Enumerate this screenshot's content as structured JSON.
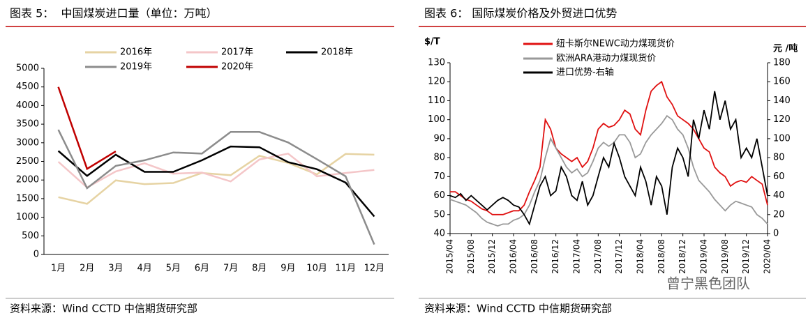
{
  "chart_data": [
    {
      "type": "line",
      "title": "图表 5：  中国煤炭进口量（单位：万吨）",
      "source": "资料来源：Wind CCTD 中信期货研究部",
      "categories": [
        "1月",
        "2月",
        "3月",
        "4月",
        "5月",
        "6月",
        "7月",
        "8月",
        "9月",
        "10月",
        "11月",
        "12月"
      ],
      "ylim": [
        0,
        5000
      ],
      "yticks": [
        0,
        500,
        1000,
        1500,
        2000,
        2500,
        3000,
        3500,
        4000,
        4500,
        5000
      ],
      "grid": false,
      "series": [
        {
          "name": "2016年",
          "color": "#e6d3a3",
          "values": [
            1540,
            1360,
            1990,
            1890,
            1920,
            2190,
            2130,
            2650,
            2460,
            2150,
            2700,
            2680
          ]
        },
        {
          "name": "2017年",
          "color": "#f4c6c8",
          "values": [
            2490,
            1800,
            2230,
            2450,
            2170,
            2200,
            1960,
            2550,
            2710,
            2100,
            2190,
            2270
          ]
        },
        {
          "name": "2018年",
          "color": "#000000",
          "values": [
            2780,
            2110,
            2680,
            2220,
            2220,
            2530,
            2900,
            2880,
            2480,
            2290,
            1930,
            1020
          ]
        },
        {
          "name": "2019年",
          "color": "#8c8c8c",
          "values": [
            3350,
            1780,
            2380,
            2530,
            2740,
            2710,
            3290,
            3290,
            3010,
            2560,
            2100,
            270
          ]
        },
        {
          "name": "2020年",
          "color": "#c00000",
          "values": [
            4500,
            2300,
            2770,
            null,
            null,
            null,
            null,
            null,
            null,
            null,
            null,
            null
          ]
        }
      ]
    },
    {
      "type": "line",
      "title": "图表 6：  国际煤炭价格及外贸进口优势",
      "source": "资料来源：Wind CCTD 中信期货研究部",
      "ylabel": "$/T",
      "y2label": "元 /吨",
      "x": [
        "2015/04",
        "2015/05",
        "2015/06",
        "2015/07",
        "2015/08",
        "2015/09",
        "2015/10",
        "2015/11",
        "2015/12",
        "2016/01",
        "2016/02",
        "2016/03",
        "2016/04",
        "2016/05",
        "2016/06",
        "2016/07",
        "2016/08",
        "2016/09",
        "2016/10",
        "2016/11",
        "2016/12",
        "2017/01",
        "2017/02",
        "2017/03",
        "2017/04",
        "2017/05",
        "2017/06",
        "2017/07",
        "2017/08",
        "2017/09",
        "2017/10",
        "2017/11",
        "2017/12",
        "2018/01",
        "2018/02",
        "2018/03",
        "2018/04",
        "2018/05",
        "2018/06",
        "2018/07",
        "2018/08",
        "2018/09",
        "2018/10",
        "2018/11",
        "2018/12",
        "2019/01",
        "2019/02",
        "2019/03",
        "2019/04",
        "2019/05",
        "2019/06",
        "2019/07",
        "2019/08",
        "2019/09",
        "2019/10",
        "2019/11",
        "2019/12",
        "2020/01",
        "2020/02",
        "2020/03",
        "2020/04"
      ],
      "xticks": [
        "2015/04",
        "2015/08",
        "2015/12",
        "2016/04",
        "2016/08",
        "2016/12",
        "2017/04",
        "2017/08",
        "2017/12",
        "2018/04",
        "2018/08",
        "2018/12",
        "2019/04",
        "2019/08",
        "2019/12",
        "2020/04"
      ],
      "ylim": [
        40,
        130
      ],
      "yticks": [
        40,
        50,
        60,
        70,
        80,
        90,
        100,
        110,
        120,
        130
      ],
      "y2lim": [
        0,
        180
      ],
      "y2ticks": [
        0,
        20,
        40,
        60,
        80,
        100,
        120,
        140,
        160,
        180
      ],
      "grid": false,
      "series": [
        {
          "name": "纽卡斯尔NEWC动力煤现货价",
          "color": "#e01010",
          "values": [
            62,
            62,
            60,
            58,
            57,
            55,
            53,
            52,
            50,
            50,
            50,
            51,
            52,
            52,
            55,
            62,
            68,
            75,
            100,
            95,
            85,
            82,
            80,
            78,
            80,
            75,
            78,
            85,
            95,
            98,
            96,
            97,
            100,
            105,
            103,
            95,
            92,
            105,
            115,
            118,
            120,
            112,
            108,
            102,
            100,
            98,
            95,
            90,
            85,
            83,
            75,
            72,
            70,
            65,
            67,
            68,
            67,
            70,
            68,
            66,
            55
          ]
        },
        {
          "name": "欧洲ARA港动力煤现货价",
          "color": "#999999",
          "values": [
            58,
            57,
            56,
            55,
            53,
            51,
            48,
            46,
            45,
            44,
            45,
            45,
            47,
            48,
            50,
            55,
            62,
            68,
            80,
            90,
            85,
            80,
            75,
            72,
            74,
            70,
            72,
            78,
            85,
            88,
            86,
            88,
            92,
            92,
            88,
            80,
            82,
            88,
            92,
            95,
            98,
            102,
            100,
            95,
            92,
            85,
            75,
            68,
            65,
            62,
            58,
            55,
            52,
            55,
            57,
            56,
            55,
            54,
            50,
            48,
            45
          ]
        },
        {
          "name": "进口优势-右轴",
          "color": "#000000",
          "axis": "y2",
          "values": [
            40,
            38,
            42,
            35,
            40,
            35,
            30,
            25,
            30,
            35,
            38,
            35,
            30,
            28,
            20,
            10,
            30,
            50,
            60,
            40,
            45,
            70,
            60,
            40,
            35,
            55,
            30,
            40,
            60,
            80,
            70,
            95,
            80,
            60,
            50,
            40,
            70,
            55,
            30,
            60,
            50,
            20,
            70,
            90,
            80,
            60,
            120,
            100,
            130,
            110,
            150,
            120,
            140,
            110,
            120,
            80,
            90,
            80,
            100,
            70,
            40
          ]
        }
      ]
    }
  ],
  "watermark": "曾宁黑色团队"
}
